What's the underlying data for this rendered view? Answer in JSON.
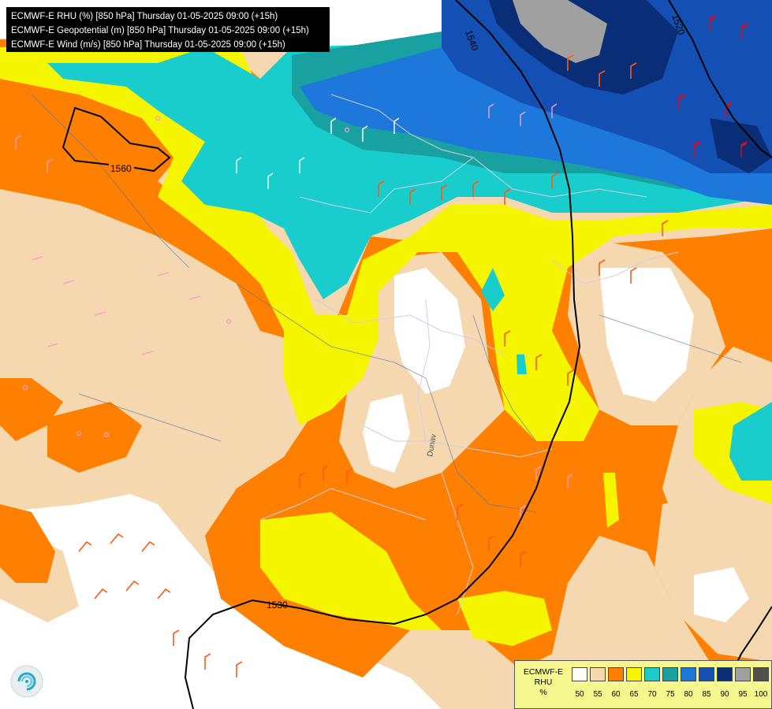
{
  "header": {
    "line1": "ECMWF-E RHU (%) [850 hPa] Thursday 01-05-2025 09:00 (+15h)",
    "line2": "ECMWF-E Geopotential (m) [850 hPa] Thursday 01-05-2025 09:00 (+15h)",
    "line3": "ECMWF-E Wind (m/s) [850 hPa] Thursday 01-05-2025 09:00 (+15h)"
  },
  "contours": {
    "c1560": "1560",
    "c1540": "1540",
    "c1520": "1520",
    "c1530": "1530"
  },
  "map_labels": {
    "river": "Dunav"
  },
  "legend": {
    "line1": "ECMWF-E",
    "line2": "RHU",
    "line3": "%",
    "colors": [
      "#ffffff",
      "#f5d8b0",
      "#ff8000",
      "#f5f500",
      "#19cdcd",
      "#19a0a0",
      "#1e78dc",
      "#1450b4",
      "#0a2d78",
      "#a0a0a0",
      "#505050"
    ],
    "ticks": [
      "50",
      "55",
      "60",
      "65",
      "70",
      "75",
      "80",
      "85",
      "90",
      "95",
      "100"
    ]
  }
}
